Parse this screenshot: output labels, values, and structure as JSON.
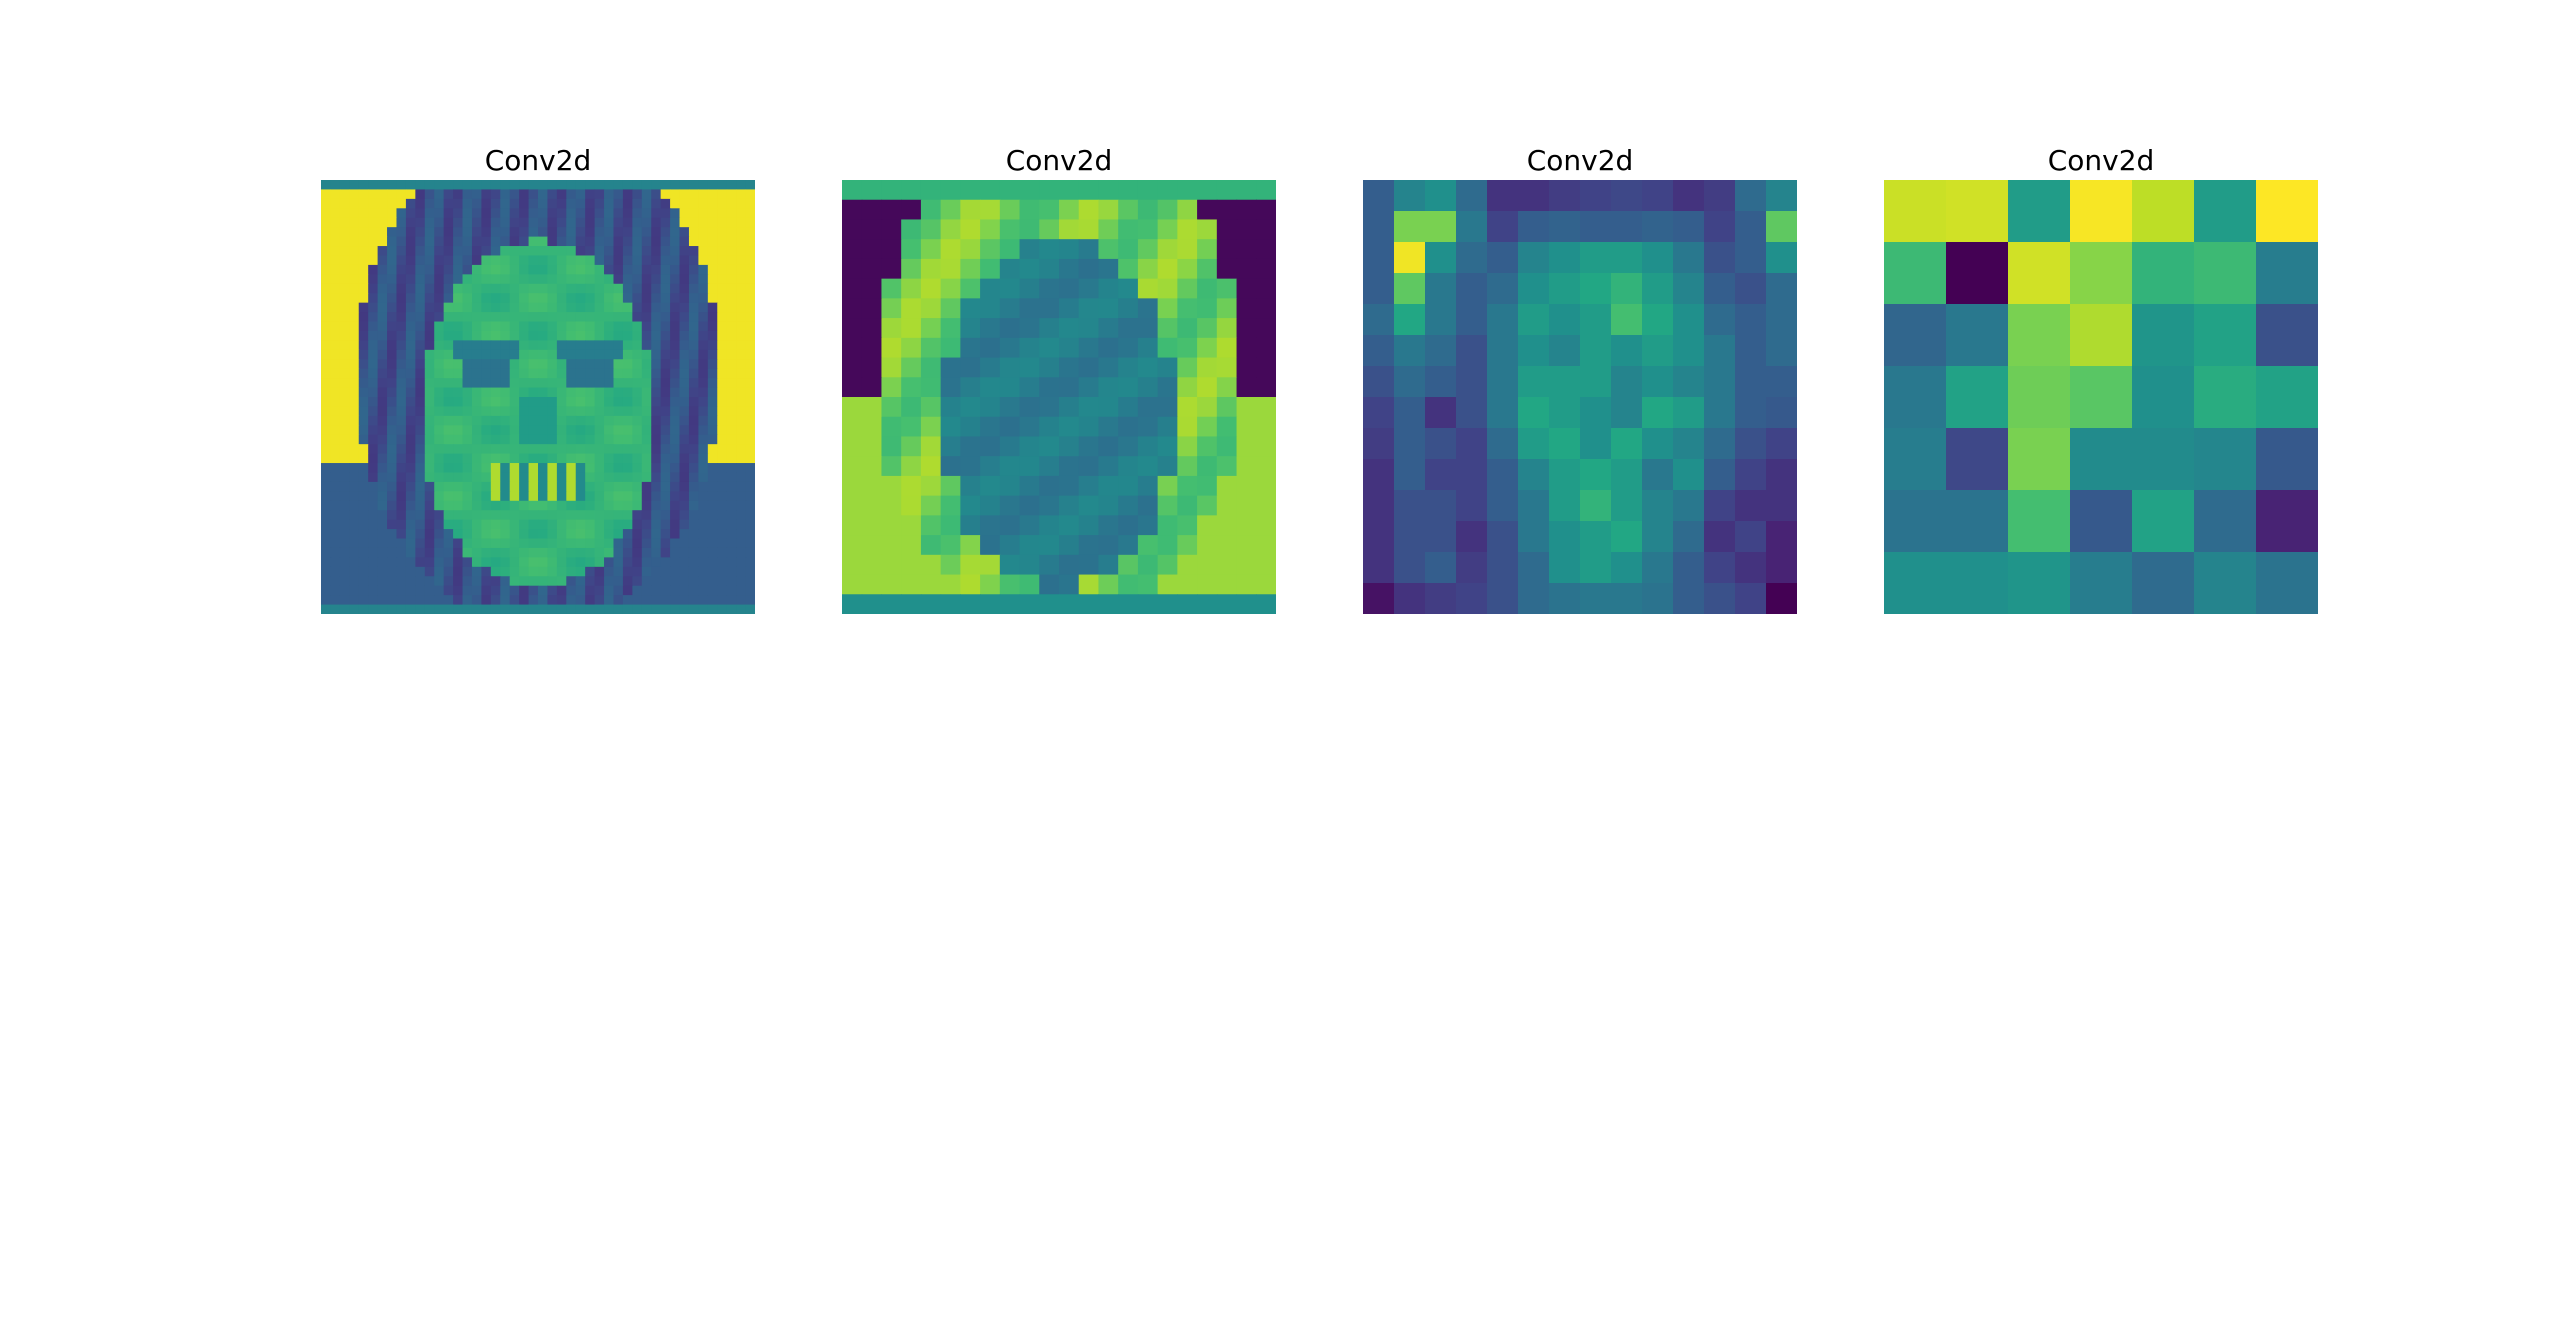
{
  "chart_data": [
    {
      "type": "heatmap",
      "title": "Conv2d",
      "colormap": "viridis",
      "axes": "off",
      "grid": false,
      "rows": 46,
      "cols": 46,
      "description_shape": "face",
      "value_range": [
        0,
        1
      ]
    },
    {
      "type": "heatmap",
      "title": "Conv2d",
      "colormap": "viridis",
      "axes": "off",
      "grid": false,
      "rows": 22,
      "cols": 22,
      "description_shape": "face-inverted",
      "value_range": [
        0,
        1
      ]
    },
    {
      "type": "heatmap",
      "title": "Conv2d",
      "colormap": "viridis",
      "axes": "off",
      "grid": false,
      "rows": 14,
      "cols": 14,
      "value_range": [
        0,
        1
      ],
      "values": [
        [
          0.3,
          0.45,
          0.5,
          0.35,
          0.15,
          0.15,
          0.18,
          0.2,
          0.22,
          0.2,
          0.15,
          0.18,
          0.35,
          0.45
        ],
        [
          0.3,
          0.8,
          0.8,
          0.4,
          0.2,
          0.3,
          0.32,
          0.3,
          0.3,
          0.32,
          0.3,
          0.2,
          0.3,
          0.75
        ],
        [
          0.3,
          0.98,
          0.5,
          0.35,
          0.3,
          0.45,
          0.5,
          0.55,
          0.55,
          0.5,
          0.4,
          0.25,
          0.3,
          0.5
        ],
        [
          0.3,
          0.75,
          0.4,
          0.3,
          0.35,
          0.5,
          0.55,
          0.6,
          0.65,
          0.55,
          0.45,
          0.3,
          0.25,
          0.35
        ],
        [
          0.35,
          0.6,
          0.4,
          0.3,
          0.4,
          0.55,
          0.5,
          0.55,
          0.7,
          0.6,
          0.5,
          0.35,
          0.3,
          0.35
        ],
        [
          0.3,
          0.4,
          0.35,
          0.25,
          0.4,
          0.5,
          0.45,
          0.55,
          0.5,
          0.55,
          0.5,
          0.4,
          0.3,
          0.35
        ],
        [
          0.25,
          0.35,
          0.3,
          0.25,
          0.4,
          0.55,
          0.55,
          0.55,
          0.45,
          0.5,
          0.45,
          0.4,
          0.3,
          0.3
        ],
        [
          0.2,
          0.3,
          0.15,
          0.25,
          0.4,
          0.6,
          0.55,
          0.5,
          0.45,
          0.6,
          0.55,
          0.4,
          0.3,
          0.28
        ],
        [
          0.18,
          0.3,
          0.25,
          0.2,
          0.35,
          0.55,
          0.6,
          0.5,
          0.6,
          0.5,
          0.45,
          0.35,
          0.25,
          0.2
        ],
        [
          0.15,
          0.3,
          0.2,
          0.2,
          0.3,
          0.45,
          0.55,
          0.6,
          0.55,
          0.4,
          0.5,
          0.3,
          0.2,
          0.15
        ],
        [
          0.15,
          0.25,
          0.25,
          0.2,
          0.3,
          0.4,
          0.55,
          0.65,
          0.55,
          0.45,
          0.4,
          0.2,
          0.15,
          0.15
        ],
        [
          0.15,
          0.25,
          0.25,
          0.15,
          0.25,
          0.4,
          0.5,
          0.55,
          0.6,
          0.45,
          0.35,
          0.15,
          0.2,
          0.1
        ],
        [
          0.15,
          0.25,
          0.3,
          0.18,
          0.25,
          0.35,
          0.5,
          0.55,
          0.5,
          0.4,
          0.3,
          0.2,
          0.15,
          0.1
        ],
        [
          0.05,
          0.15,
          0.18,
          0.2,
          0.25,
          0.35,
          0.38,
          0.4,
          0.4,
          0.38,
          0.3,
          0.25,
          0.2,
          0.0
        ]
      ]
    },
    {
      "type": "heatmap",
      "title": "Conv2d",
      "colormap": "viridis",
      "axes": "off",
      "grid": false,
      "rows": 7,
      "cols": 7,
      "value_range": [
        0,
        1
      ],
      "values": [
        [
          0.92,
          0.93,
          0.55,
          0.99,
          0.9,
          0.55,
          1.0
        ],
        [
          0.68,
          0.0,
          0.93,
          0.82,
          0.65,
          0.68,
          0.42
        ],
        [
          0.33,
          0.4,
          0.8,
          0.88,
          0.52,
          0.58,
          0.25
        ],
        [
          0.4,
          0.58,
          0.78,
          0.74,
          0.5,
          0.62,
          0.58
        ],
        [
          0.42,
          0.22,
          0.8,
          0.48,
          0.48,
          0.46,
          0.28
        ],
        [
          0.38,
          0.38,
          0.7,
          0.28,
          0.58,
          0.35,
          0.1
        ],
        [
          0.5,
          0.5,
          0.52,
          0.42,
          0.35,
          0.45,
          0.38
        ]
      ]
    }
  ]
}
